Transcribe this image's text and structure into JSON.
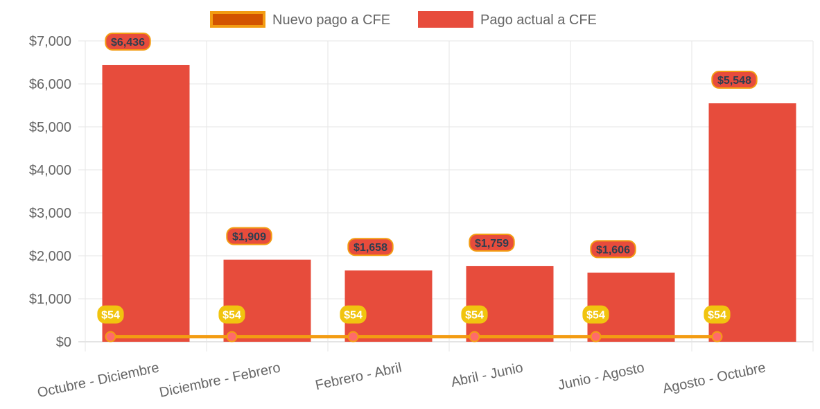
{
  "chart_data": {
    "type": "bar",
    "categories": [
      "Octubre - Diciembre",
      "Diciembre - Febrero",
      "Febrero - Abril",
      "Abril - Junio",
      "Junio - Agosto",
      "Agosto - Octubre"
    ],
    "series": [
      {
        "name": "Pago actual a CFE",
        "type": "bar",
        "values": [
          6436,
          1909,
          1658,
          1759,
          1606,
          5548
        ],
        "color": "#e74c3c",
        "data_labels": [
          "$6,436",
          "$1,909",
          "$1,658",
          "$1,759",
          "$1,606",
          "$5,548"
        ]
      },
      {
        "name": "Nuevo pago a CFE",
        "type": "line",
        "values": [
          54,
          54,
          54,
          54,
          54,
          54
        ],
        "color": "#f39c12",
        "data_labels": [
          "$54",
          "$54",
          "$54",
          "$54",
          "$54",
          "$54"
        ]
      }
    ],
    "legend": [
      "Nuevo pago a CFE",
      "Pago actual a CFE"
    ],
    "legend_position": "top",
    "ylim": [
      0,
      7000
    ],
    "yticks": [
      "$0",
      "$1,000",
      "$2,000",
      "$3,000",
      "$4,000",
      "$5,000",
      "$6,000",
      "$7,000"
    ],
    "grid": true,
    "colors": {
      "bar": "#e74c3c",
      "line": "#f39c12",
      "line_legend_fill": "#d35400",
      "point": "#ff6b6b",
      "badge_line_bg": "#f1c40f"
    }
  }
}
